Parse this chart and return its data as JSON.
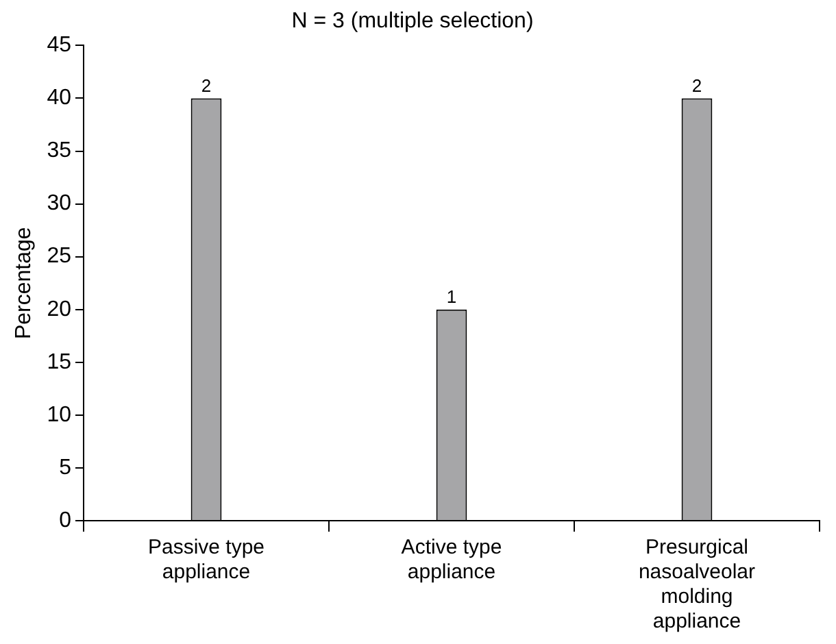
{
  "chart_data": {
    "type": "bar",
    "title": "N = 3 (multiple selection)",
    "ylabel": "Percentage",
    "categories": [
      "Passive type appliance",
      "Active type appliance",
      "Presurgical nasoalveolar molding appliance"
    ],
    "values": [
      40,
      20,
      40
    ],
    "color": "#a6a6a8",
    "annotations": [
      {
        "text": "2",
        "x": "Passive type appliance",
        "y": 40
      },
      {
        "text": "1",
        "x": "Active type appliance",
        "y": 20
      },
      {
        "text": "2",
        "x": "Presurgical nasoalveolar molding appliance",
        "y": 40
      }
    ],
    "ylim": [
      0,
      45
    ],
    "yticks": [
      0,
      5,
      10,
      15,
      20,
      25,
      30,
      35,
      40,
      45
    ],
    "grid": false,
    "legend": false
  }
}
